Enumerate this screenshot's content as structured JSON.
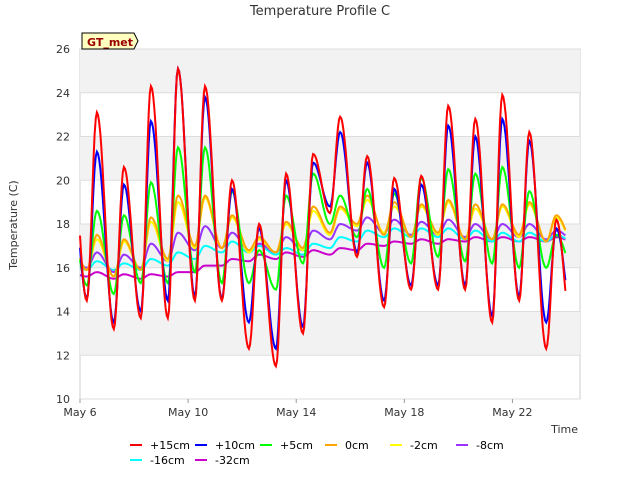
{
  "chart_data": {
    "type": "line",
    "title": "Temperature Profile C",
    "xlabel": "Time",
    "ylabel": "Temperature (C)",
    "badge": "GT_met",
    "xlim": [
      "2024-05-06",
      "2024-05-24T12:00"
    ],
    "ylim": [
      10,
      26
    ],
    "yticks": [
      10,
      12,
      14,
      16,
      18,
      20,
      22,
      24,
      26
    ],
    "xticks": [
      {
        "date": "2024-05-06",
        "label": "May 6"
      },
      {
        "date": "2024-05-10",
        "label": "May 10"
      },
      {
        "date": "2024-05-14",
        "label": "May 14"
      },
      {
        "date": "2024-05-18",
        "label": "May 18"
      },
      {
        "date": "2024-05-22",
        "label": "May 22"
      }
    ],
    "grid": true,
    "legend_position": "bottom",
    "x": [
      "2024-05-06T12:00",
      "2024-05-07T12:00",
      "2024-05-08T12:00",
      "2024-05-09T12:00",
      "2024-05-10T12:00",
      "2024-05-11T12:00",
      "2024-05-12T12:00",
      "2024-05-13T12:00",
      "2024-05-14T12:00",
      "2024-05-15T12:00",
      "2024-05-16T12:00",
      "2024-05-17T12:00",
      "2024-05-18T12:00",
      "2024-05-19T12:00",
      "2024-05-20T12:00",
      "2024-05-21T12:00",
      "2024-05-22T12:00",
      "2024-05-23T12:00"
    ],
    "series": [
      {
        "name": "+15cm",
        "color": "#ff0000",
        "min": [
          14.5,
          13.2,
          13.7,
          13.7,
          14.5,
          14.5,
          12.3,
          11.5,
          13.0,
          18.5,
          16.5,
          14.2,
          15.0,
          15.0,
          15.0,
          13.5,
          14.5,
          12.3
        ],
        "max": [
          23.1,
          20.6,
          24.3,
          25.1,
          24.3,
          20.0,
          18.0,
          20.3,
          21.2,
          22.9,
          21.1,
          20.1,
          20.2,
          23.4,
          22.8,
          23.9,
          22.2,
          18.2
        ]
      },
      {
        "name": "+10cm",
        "color": "#0000ff",
        "min": [
          14.6,
          13.5,
          14.0,
          14.5,
          14.7,
          14.6,
          13.5,
          12.3,
          13.3,
          18.8,
          16.7,
          14.5,
          15.2,
          15.2,
          15.2,
          13.8,
          14.7,
          13.5
        ],
        "max": [
          21.3,
          19.8,
          22.7,
          25.1,
          23.8,
          19.6,
          17.8,
          20.0,
          20.8,
          22.2,
          20.8,
          19.6,
          19.8,
          22.5,
          22.0,
          22.8,
          21.8,
          17.8
        ]
      },
      {
        "name": "+5cm",
        "color": "#00ff00",
        "min": [
          15.2,
          14.8,
          15.3,
          15.3,
          15.8,
          15.3,
          15.3,
          15.0,
          16.2,
          18.0,
          17.4,
          16.0,
          16.2,
          16.5,
          16.3,
          16.2,
          16.0,
          16.0
        ],
        "max": [
          18.6,
          18.4,
          19.9,
          21.5,
          21.5,
          19.5,
          16.8,
          19.3,
          20.3,
          19.3,
          19.6,
          19.4,
          20.1,
          20.5,
          20.3,
          20.6,
          19.5,
          17.5
        ]
      },
      {
        "name": "0cm",
        "color": "#ffa500",
        "min": [
          15.9,
          15.6,
          15.9,
          16.4,
          17.0,
          16.9,
          16.8,
          16.7,
          16.9,
          17.6,
          18.0,
          17.5,
          17.4,
          17.6,
          17.3,
          17.3,
          17.5,
          17.2
        ],
        "max": [
          17.5,
          17.3,
          18.3,
          19.3,
          19.3,
          18.4,
          17.4,
          18.1,
          18.8,
          18.8,
          19.3,
          19.0,
          18.9,
          19.1,
          18.9,
          18.9,
          19.0,
          18.4
        ]
      },
      {
        "name": "-2cm",
        "color": "#ffff00",
        "min": [
          15.9,
          15.6,
          15.9,
          16.3,
          16.9,
          16.9,
          16.7,
          16.7,
          16.8,
          17.5,
          17.9,
          17.6,
          17.4,
          17.5,
          17.3,
          17.3,
          17.4,
          17.2
        ],
        "max": [
          17.3,
          17.2,
          18.1,
          19.0,
          19.2,
          18.3,
          17.3,
          18.0,
          18.6,
          18.7,
          19.1,
          18.8,
          18.8,
          19.0,
          18.7,
          18.8,
          18.9,
          18.3
        ]
      },
      {
        "name": "-8cm",
        "color": "#9933ff",
        "min": [
          16.0,
          15.8,
          16.0,
          16.3,
          16.8,
          16.9,
          16.8,
          16.7,
          16.8,
          17.3,
          17.7,
          17.6,
          17.5,
          17.5,
          17.4,
          17.3,
          17.4,
          17.3
        ],
        "max": [
          16.7,
          16.6,
          17.1,
          17.6,
          17.9,
          17.6,
          17.1,
          17.4,
          17.7,
          18.0,
          18.3,
          18.2,
          18.1,
          18.2,
          18.0,
          18.0,
          18.0,
          17.7
        ]
      },
      {
        "name": "-16cm",
        "color": "#00ffff",
        "min": [
          15.9,
          15.9,
          15.9,
          16.1,
          16.4,
          16.7,
          16.7,
          16.6,
          16.6,
          16.9,
          17.2,
          17.4,
          17.4,
          17.4,
          17.3,
          17.2,
          17.2,
          17.2
        ],
        "max": [
          16.3,
          16.2,
          16.4,
          16.7,
          17.0,
          17.2,
          17.0,
          16.9,
          17.1,
          17.4,
          17.7,
          17.8,
          17.8,
          17.8,
          17.7,
          17.6,
          17.6,
          17.5
        ]
      },
      {
        "name": "-32cm",
        "color": "#cc00cc",
        "min": [
          15.6,
          15.5,
          15.5,
          15.6,
          15.8,
          16.1,
          16.3,
          16.4,
          16.5,
          16.6,
          16.8,
          17.0,
          17.1,
          17.1,
          17.2,
          17.2,
          17.2,
          17.2
        ],
        "max": [
          15.8,
          15.7,
          15.7,
          15.8,
          16.1,
          16.4,
          16.6,
          16.7,
          16.8,
          16.9,
          17.1,
          17.2,
          17.3,
          17.3,
          17.4,
          17.4,
          17.4,
          17.4
        ]
      }
    ]
  }
}
